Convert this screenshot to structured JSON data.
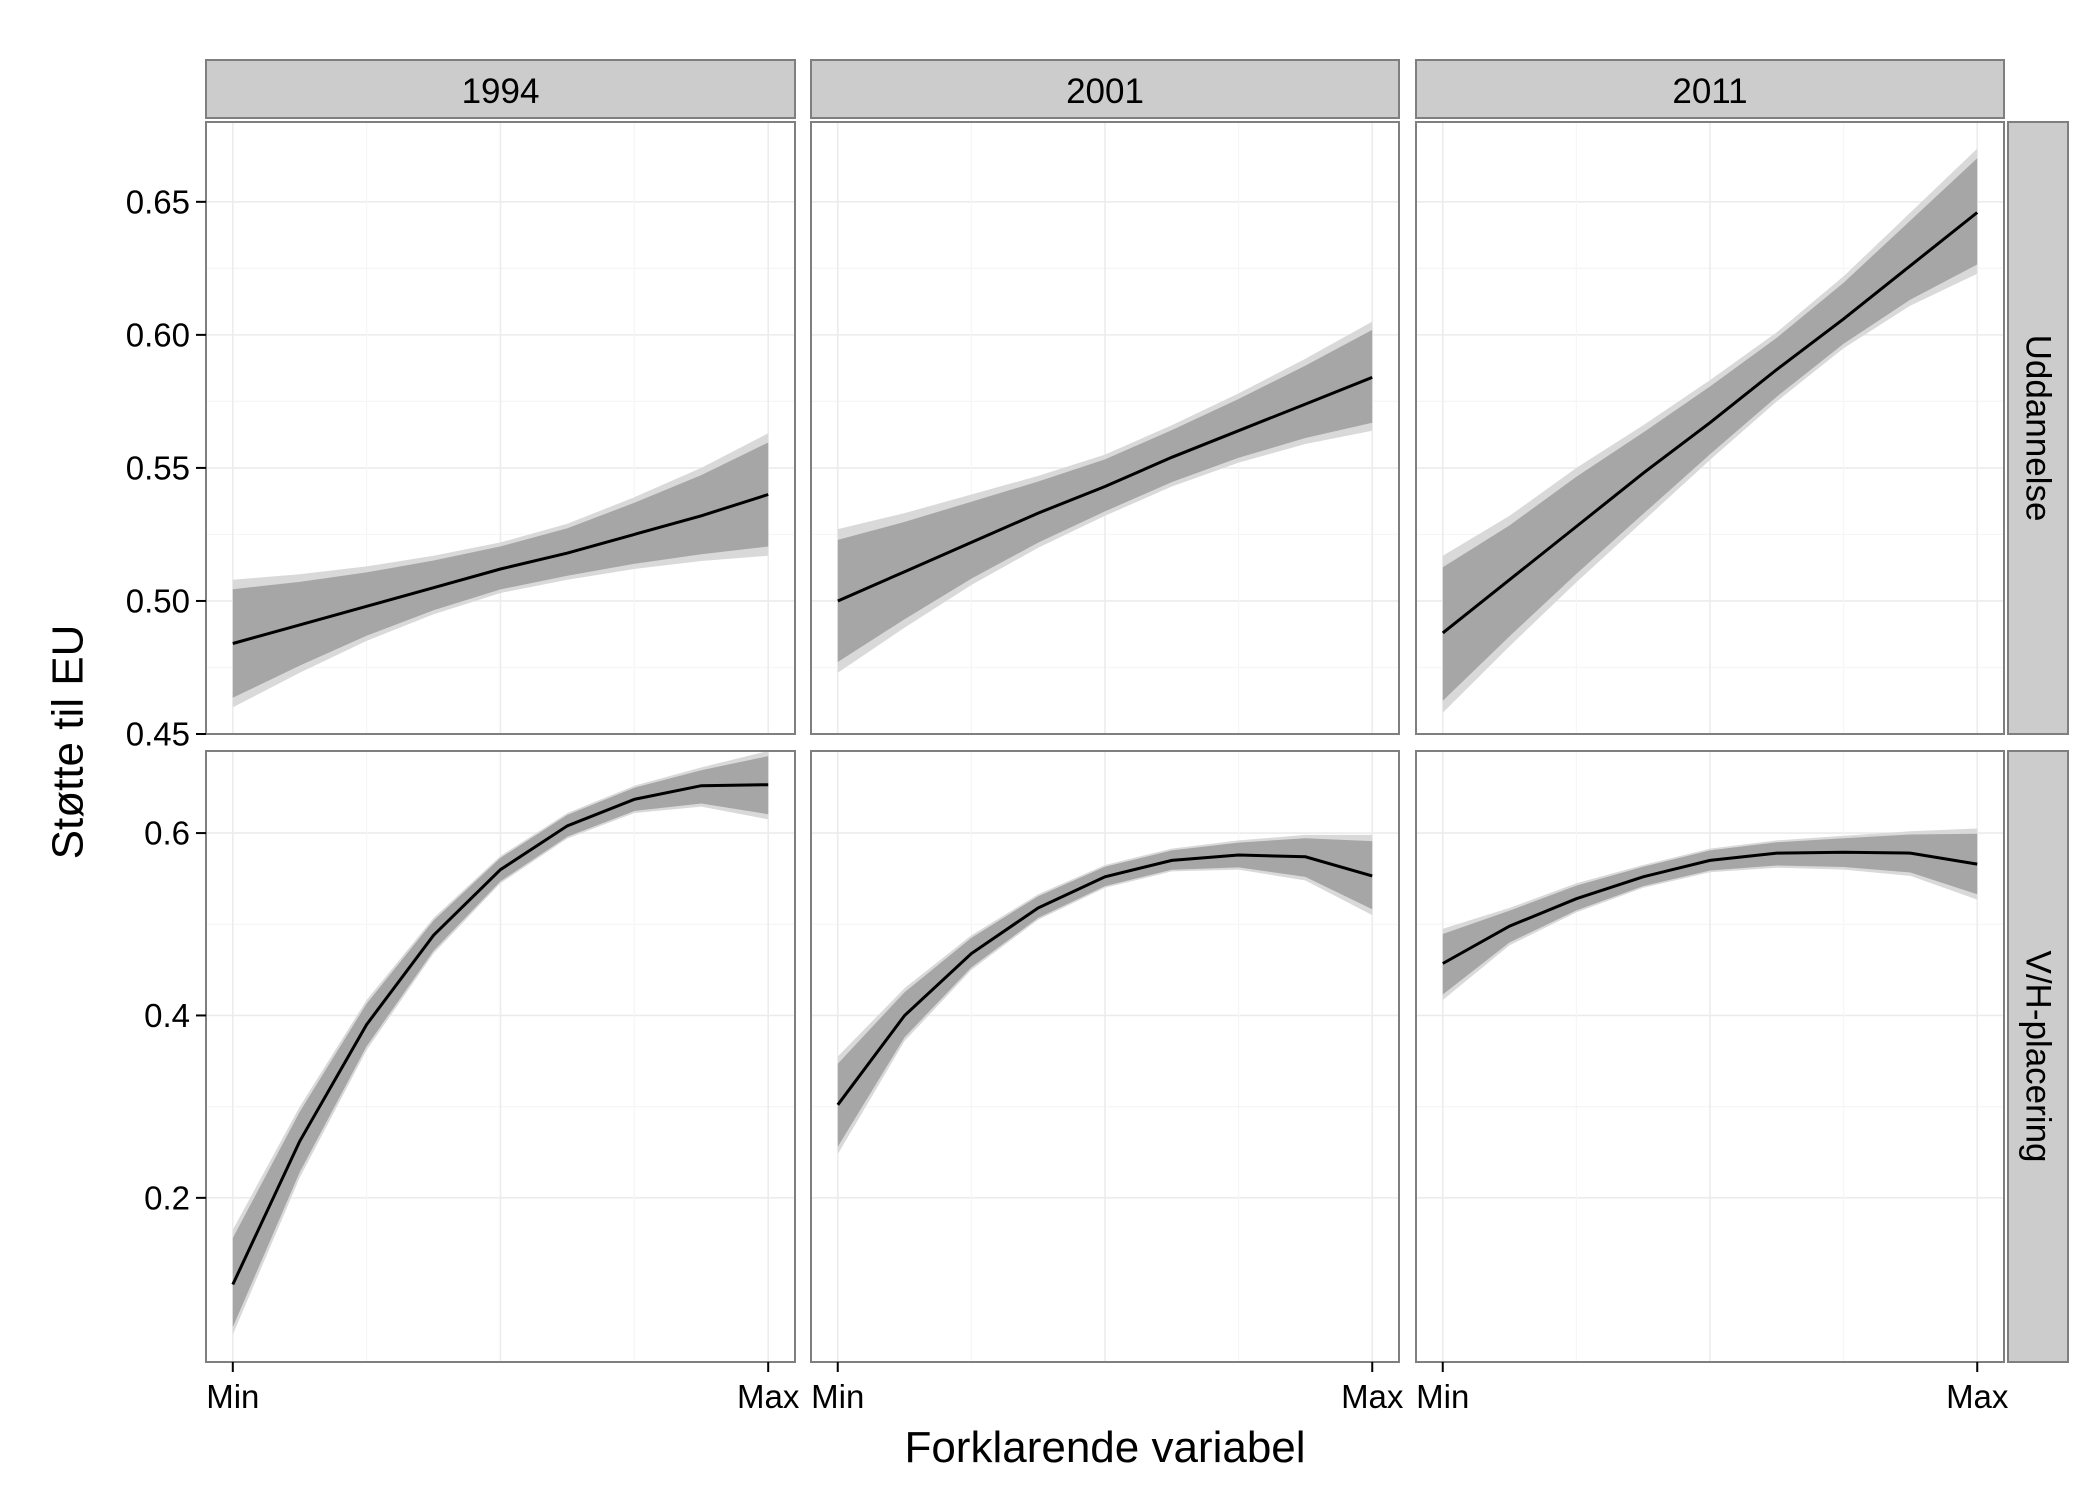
{
  "chart_data": {
    "type": "line",
    "xlabel": "Forklarende variabel",
    "ylabel": "Støtte til EU",
    "x_tick_labels": [
      "Min",
      "Max"
    ],
    "columns": [
      "1994",
      "2001",
      "2011"
    ],
    "rows": [
      "Uddannelse",
      "V/H-placering"
    ],
    "x": [
      0,
      0.125,
      0.25,
      0.375,
      0.5,
      0.625,
      0.75,
      0.875,
      1
    ],
    "row_axes": [
      {
        "ylim": [
          0.45,
          0.68
        ],
        "yticks": [
          0.45,
          0.5,
          0.55,
          0.6,
          0.65
        ],
        "ytick_labels": [
          "0.45",
          "0.50",
          "0.55",
          "0.60",
          "0.65"
        ]
      },
      {
        "ylim": [
          0.02,
          0.69
        ],
        "yticks": [
          0.2,
          0.4,
          0.6
        ],
        "ytick_labels": [
          "0.2",
          "0.4",
          "0.6"
        ]
      }
    ],
    "panels": [
      {
        "column": "1994",
        "row": "Uddannelse",
        "fit": [
          0.484,
          0.491,
          0.498,
          0.505,
          0.512,
          0.518,
          0.525,
          0.532,
          0.54
        ],
        "ci_low": [
          0.46,
          0.473,
          0.485,
          0.495,
          0.503,
          0.508,
          0.512,
          0.515,
          0.517
        ],
        "ci_high": [
          0.508,
          0.51,
          0.513,
          0.517,
          0.522,
          0.529,
          0.539,
          0.55,
          0.563
        ]
      },
      {
        "column": "2001",
        "row": "Uddannelse",
        "fit": [
          0.5,
          0.511,
          0.522,
          0.533,
          0.543,
          0.554,
          0.564,
          0.574,
          0.584
        ],
        "ci_low": [
          0.473,
          0.49,
          0.506,
          0.52,
          0.532,
          0.543,
          0.552,
          0.559,
          0.564
        ],
        "ci_high": [
          0.527,
          0.533,
          0.54,
          0.547,
          0.555,
          0.566,
          0.578,
          0.591,
          0.605
        ]
      },
      {
        "column": "2011",
        "row": "Uddannelse",
        "fit": [
          0.488,
          0.508,
          0.528,
          0.548,
          0.567,
          0.587,
          0.606,
          0.626,
          0.646
        ],
        "ci_low": [
          0.458,
          0.483,
          0.507,
          0.53,
          0.553,
          0.575,
          0.595,
          0.611,
          0.623
        ],
        "ci_high": [
          0.517,
          0.532,
          0.55,
          0.566,
          0.583,
          0.601,
          0.622,
          0.646,
          0.67
        ]
      },
      {
        "column": "1994",
        "row": "V/H-placering",
        "fit": [
          0.105,
          0.262,
          0.39,
          0.488,
          0.56,
          0.608,
          0.637,
          0.652,
          0.653
        ],
        "ci_low": [
          0.05,
          0.222,
          0.362,
          0.468,
          0.545,
          0.594,
          0.622,
          0.629,
          0.615
        ],
        "ci_high": [
          0.165,
          0.3,
          0.417,
          0.507,
          0.575,
          0.622,
          0.652,
          0.672,
          0.69
        ]
      },
      {
        "column": "2001",
        "row": "V/H-placering",
        "fit": [
          0.302,
          0.4,
          0.468,
          0.518,
          0.552,
          0.57,
          0.576,
          0.574,
          0.553
        ],
        "ci_low": [
          0.248,
          0.372,
          0.45,
          0.505,
          0.54,
          0.558,
          0.56,
          0.548,
          0.51
        ],
        "ci_high": [
          0.355,
          0.43,
          0.488,
          0.533,
          0.565,
          0.583,
          0.592,
          0.598,
          0.598
        ]
      },
      {
        "column": "2011",
        "row": "V/H-placering",
        "fit": [
          0.457,
          0.498,
          0.528,
          0.552,
          0.57,
          0.578,
          0.579,
          0.578,
          0.566
        ],
        "ci_low": [
          0.417,
          0.477,
          0.513,
          0.54,
          0.557,
          0.562,
          0.56,
          0.553,
          0.527
        ],
        "ci_high": [
          0.495,
          0.518,
          0.545,
          0.565,
          0.583,
          0.592,
          0.597,
          0.602,
          0.605
        ]
      }
    ]
  }
}
